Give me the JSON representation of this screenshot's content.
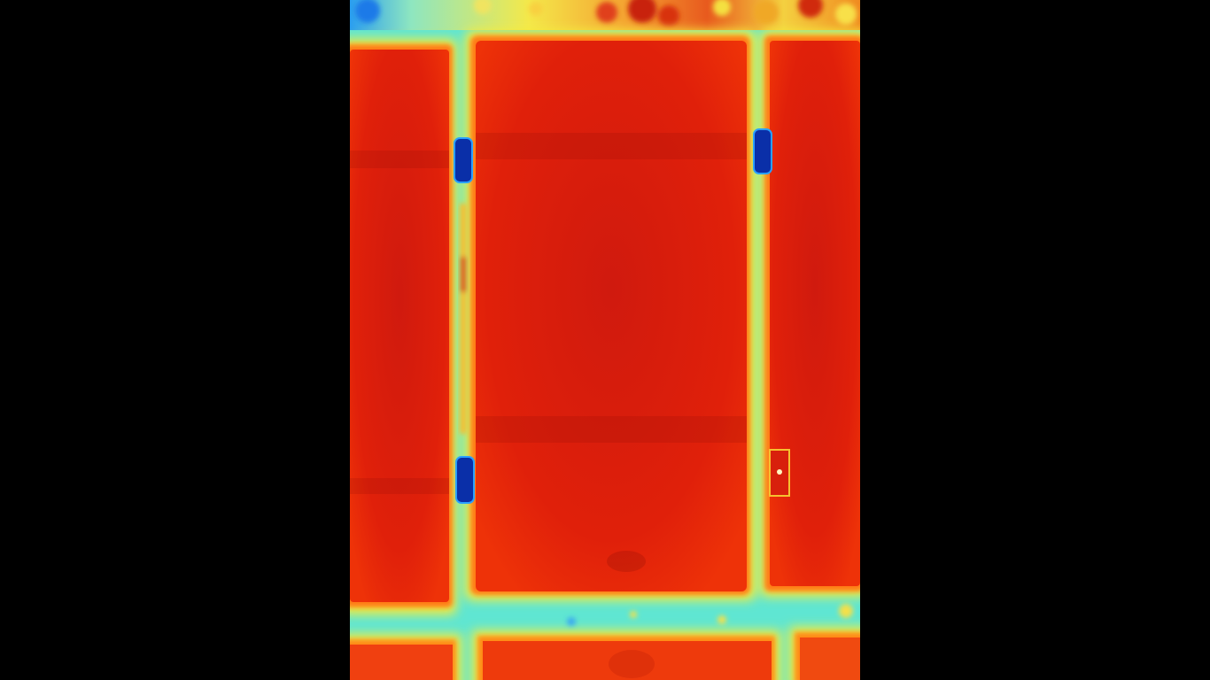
{
  "viewer": {
    "image_kind": "thermal-aerial",
    "palette": {
      "hot": "#d81c0c",
      "warm": "#f23a08",
      "edge": "#ff8a10",
      "mid": "#f6ee3a",
      "cool": "#5fe6d2",
      "cold": "#0a2fa8",
      "background": "#000000"
    }
  }
}
